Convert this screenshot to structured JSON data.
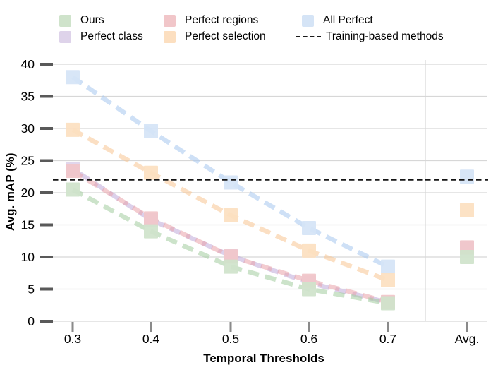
{
  "legend": {
    "items": [
      {
        "label": "Ours",
        "type": "square",
        "color": "#cfe3cb"
      },
      {
        "label": "Perfect class",
        "type": "square",
        "color": "#ded3ea"
      },
      {
        "label": "Perfect regions",
        "type": "square",
        "color": "#f1c6c9"
      },
      {
        "label": "Perfect selection",
        "type": "square",
        "color": "#fcdfc0"
      },
      {
        "label": "All Perfect",
        "type": "square",
        "color": "#d5e4f6"
      },
      {
        "label": "Training-based methods",
        "type": "dashed-line",
        "color": "#1a1a1a"
      }
    ]
  },
  "chart_data": {
    "type": "line",
    "title": "",
    "xlabel": "Temporal Thresholds",
    "ylabel": "Avg. mAP (%)",
    "categories": [
      "0.3",
      "0.4",
      "0.5",
      "0.6",
      "0.7",
      "Avg."
    ],
    "yticks": [
      0,
      5,
      10,
      15,
      20,
      25,
      30,
      35,
      40
    ],
    "ylim": [
      0,
      40
    ],
    "grid": "horizontal",
    "legend_position": "top",
    "line_style": "thick dashed, semi-transparent, square markers",
    "avg_note": "Avg. is a separate column right of a vertical divider; no line connects 0.7 to Avg.",
    "series": [
      {
        "name": "All Perfect",
        "marker_color": "#d5e4f6",
        "line_color": "#a5c6ee",
        "values": [
          38.0,
          29.6,
          21.6,
          14.5,
          8.5
        ],
        "avg": 22.5
      },
      {
        "name": "Perfect selection",
        "marker_color": "#fcdfc0",
        "line_color": "#f7c492",
        "values": [
          29.8,
          23.1,
          16.5,
          11.0,
          6.4
        ],
        "avg": 17.3
      },
      {
        "name": "Perfect class",
        "marker_color": "#ded3ea",
        "line_color": "#bfa9d8",
        "values": [
          23.7,
          15.8,
          10.2,
          6.0,
          2.9
        ],
        "avg": 11.4
      },
      {
        "name": "Perfect regions",
        "marker_color": "#f1c6c9",
        "line_color": "#e9a3a9",
        "values": [
          23.4,
          16.0,
          10.1,
          6.3,
          3.0
        ],
        "avg": 11.5
      },
      {
        "name": "Ours",
        "marker_color": "#cfe3cb",
        "line_color": "#a3cc9e",
        "values": [
          20.5,
          14.0,
          8.5,
          5.0,
          2.8
        ],
        "avg": 10.0
      }
    ],
    "reference_line": {
      "label": "Training-based methods",
      "value": 22.0,
      "style": "dashed",
      "color": "#151515"
    }
  }
}
